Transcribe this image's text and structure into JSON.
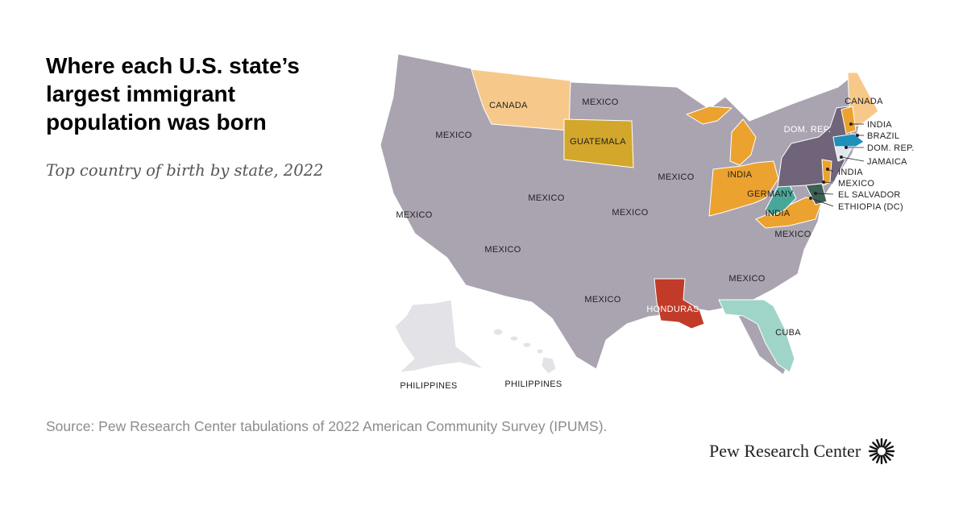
{
  "header": {
    "title": "Where each U.S. state’s largest immigrant population was born",
    "subtitle": "Top country of birth by state, 2022"
  },
  "footer": {
    "source": "Source: Pew Research Center tabulations of 2022 American Community Survey (IPUMS).",
    "brand": "Pew Research Center"
  },
  "colors": {
    "mexico": "#aaa4b0",
    "canada": "#f6c98a",
    "india": "#eca22f",
    "guatemala": "#d3a72b",
    "dominican_republic": "#6f6479",
    "germany": "#49a79a",
    "honduras": "#c13b28",
    "cuba": "#9fd5c8",
    "brazil": "#1f8fbb",
    "jamaica": "#dfe6ee",
    "el_salvador": "#3c5f56",
    "philippines": "#e3e3e7",
    "border": "#ffffff"
  },
  "map": {
    "labels": {
      "canada_mt": "CANADA",
      "mexico_nd": "MEXICO",
      "mexico_or": "MEXICO",
      "guatemala": "GUATEMALA",
      "mexico_wi": "MEXICO",
      "mexico_co": "MEXICO",
      "mexico_ca": "MEXICO",
      "mexico_ks": "MEXICO",
      "mexico_az": "MEXICO",
      "india_oh": "INDIA",
      "germany": "GERMANY",
      "india_va": "INDIA",
      "dom_rep_ny": "DOM. REP.",
      "canada_me": "CANADA",
      "mexico_nc": "MEXICO",
      "mexico_ga": "MEXICO",
      "mexico_tx": "MEXICO",
      "honduras": "HONDURAS",
      "cuba": "CUBA",
      "philippines_ak": "PHILIPPINES",
      "philippines_hi": "PHILIPPINES"
    },
    "callouts": [
      "INDIA",
      "BRAZIL",
      "DOM. REP.",
      "JAMAICA",
      "INDIA",
      "MEXICO",
      "EL SALVADOR",
      "ETHIOPIA (DC)"
    ]
  }
}
